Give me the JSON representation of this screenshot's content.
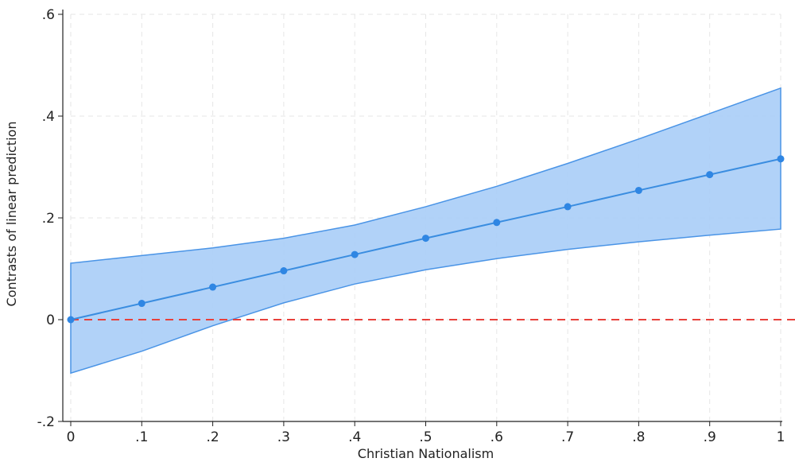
{
  "chart_data": {
    "type": "line",
    "title": "",
    "xlabel": "Christian Nationalism",
    "ylabel": "Contrasts of linear prediction",
    "xlim": [
      0,
      1
    ],
    "ylim": [
      -0.2,
      0.6
    ],
    "x": [
      0,
      0.1,
      0.2,
      0.3,
      0.4,
      0.5,
      0.6,
      0.7,
      0.8,
      0.9,
      1
    ],
    "x_tick_labels": [
      "0",
      ".1",
      ".2",
      ".3",
      ".4",
      ".5",
      ".6",
      ".7",
      ".8",
      ".9",
      "1"
    ],
    "y_ticks": [
      -0.2,
      0,
      0.2,
      0.4,
      0.6
    ],
    "y_tick_labels": [
      "-.2",
      "0",
      ".2",
      ".4",
      ".6"
    ],
    "series": [
      {
        "values": [
          0.0,
          0.032,
          0.064,
          0.096,
          0.128,
          0.16,
          0.191,
          0.222,
          0.254,
          0.285,
          0.316
        ],
        "ci_upper": [
          0.111,
          0.126,
          0.141,
          0.16,
          0.186,
          0.222,
          0.262,
          0.307,
          0.355,
          0.405,
          0.455
        ],
        "ci_lower": [
          -0.105,
          -0.062,
          -0.012,
          0.033,
          0.07,
          0.098,
          0.12,
          0.138,
          0.153,
          0.166,
          0.178
        ]
      }
    ],
    "reference_line": {
      "y": 0,
      "style": "dashed",
      "color": "#e8413c"
    },
    "colors": {
      "line": "#3a8de0",
      "band": "#a8cdf7",
      "band_edge": "#4a94e6",
      "marker": "#2f86e3"
    },
    "grid": true,
    "legend": "none"
  }
}
